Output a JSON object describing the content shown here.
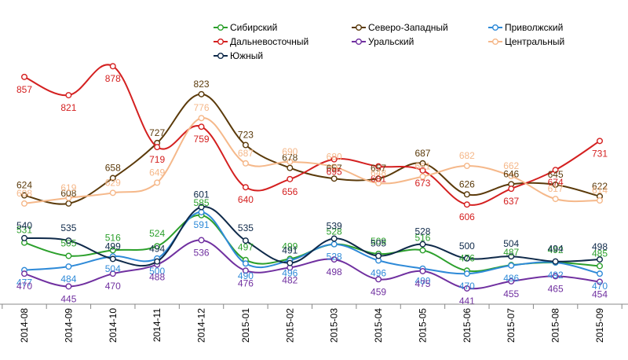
{
  "chart_data": {
    "type": "line",
    "title": "",
    "xlabel": "",
    "ylabel": "",
    "ylim": [
      410,
      900
    ],
    "grid": false,
    "legend_position": "top-right",
    "categories": [
      "2014-08",
      "2014-09",
      "2014-10",
      "2014-11",
      "2014-12",
      "2015-01",
      "2015-02",
      "2015-03",
      "2015-04",
      "2015-05",
      "2015-06",
      "2015-07",
      "2015-08",
      "2015-09"
    ],
    "series": [
      {
        "name": "Сибирский",
        "color": "#2ca02c",
        "values": [
          531,
          505,
          516,
          524,
          585,
          497,
          499,
          528,
          509,
          516,
          476,
          487,
          492,
          485
        ]
      },
      {
        "name": "Северо-Западный",
        "color": "#5b3a0a",
        "values": [
          624,
          608,
          658,
          727,
          823,
          723,
          678,
          657,
          657,
          687,
          626,
          646,
          645,
          622
        ]
      },
      {
        "name": "Приволжский",
        "color": "#2e8ad8",
        "values": [
          477,
          484,
          504,
          500,
          591,
          490,
          496,
          528,
          496,
          480,
          470,
          486,
          492,
          470
        ]
      },
      {
        "name": "Дальневосточный",
        "color": "#d42020",
        "values": [
          857,
          821,
          878,
          719,
          759,
          640,
          656,
          695,
          681,
          673,
          606,
          637,
          674,
          731
        ]
      },
      {
        "name": "Уральский",
        "color": "#7030a0",
        "values": [
          470,
          445,
          470,
          488,
          536,
          476,
          482,
          498,
          459,
          475,
          441,
          455,
          465,
          454
        ]
      },
      {
        "name": "Центральный",
        "color": "#f5b88a",
        "values": [
          608,
          619,
          629,
          649,
          776,
          687,
          690,
          680,
          648,
          661,
          682,
          662,
          617,
          614
        ]
      },
      {
        "name": "Южный",
        "color": "#0f2a4a",
        "values": [
          540,
          535,
          499,
          494,
          601,
          535,
          491,
          539,
          505,
          528,
          500,
          504,
          494,
          498
        ]
      }
    ]
  }
}
